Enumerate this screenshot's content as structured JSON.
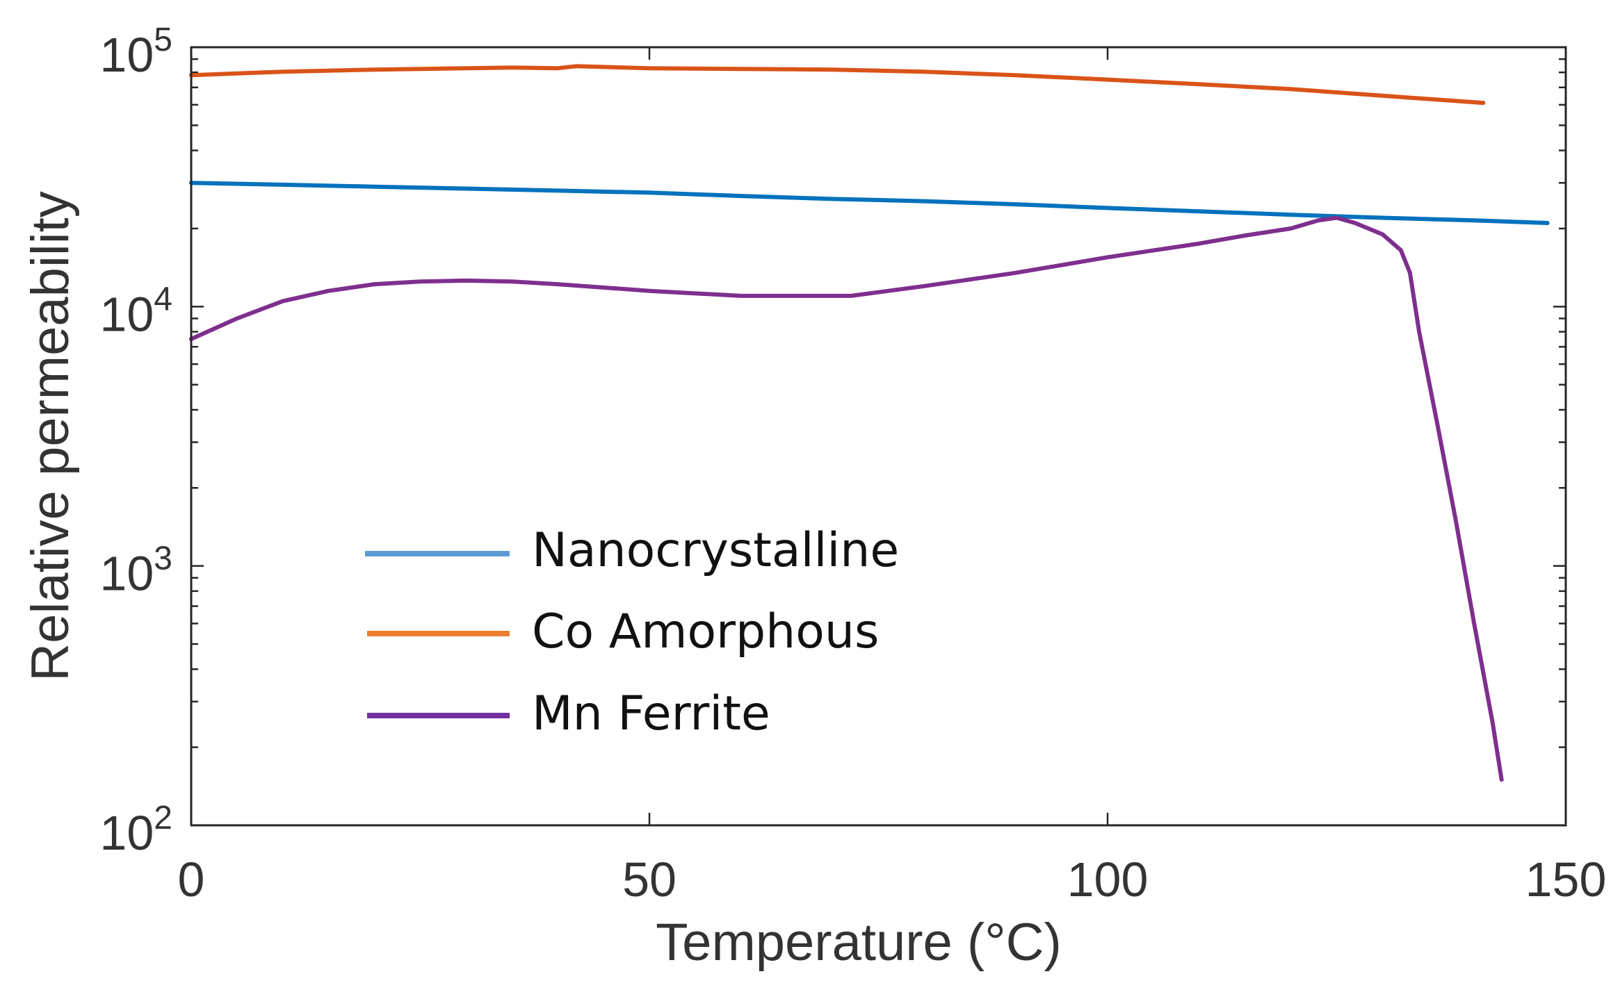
{
  "chart_data": {
    "type": "line",
    "title": "",
    "xlabel": "Temperature (°C)",
    "ylabel": "Relative permeability",
    "xlim": [
      0,
      150
    ],
    "ylim": [
      100,
      100000
    ],
    "yscale": "log",
    "grid": false,
    "legend_position": "lower-left",
    "x_ticks": [
      {
        "value": 0,
        "label": "0"
      },
      {
        "value": 50,
        "label": "50"
      },
      {
        "value": 100,
        "label": "100"
      },
      {
        "value": 150,
        "label": "150"
      }
    ],
    "y_ticks": [
      {
        "value": 100,
        "base": "10",
        "exp": "2"
      },
      {
        "value": 1000,
        "base": "10",
        "exp": "3"
      },
      {
        "value": 10000,
        "base": "10",
        "exp": "4"
      },
      {
        "value": 100000,
        "base": "10",
        "exp": "5"
      }
    ],
    "series": [
      {
        "name": "Nanocrystalline",
        "color": "#0072bd",
        "legend_color": "#5b9bd5",
        "x": [
          0,
          10,
          20,
          30,
          40,
          50,
          60,
          70,
          80,
          90,
          100,
          110,
          120,
          130,
          140,
          148
        ],
        "y": [
          30000,
          29500,
          29000,
          28500,
          28000,
          27500,
          26700,
          26000,
          25500,
          24800,
          24000,
          23300,
          22600,
          22000,
          21500,
          21000
        ]
      },
      {
        "name": "Co Amorphous",
        "color": "#d95319",
        "legend_color": "#ed7d31",
        "x": [
          0,
          10,
          20,
          30,
          35,
          40,
          42,
          50,
          60,
          70,
          80,
          90,
          100,
          110,
          120,
          130,
          141
        ],
        "y": [
          78000,
          80500,
          82000,
          83000,
          83500,
          83000,
          84500,
          83000,
          82500,
          82000,
          80500,
          78000,
          75000,
          72000,
          69000,
          65000,
          61000
        ]
      },
      {
        "name": "Mn Ferrite",
        "color": "#7e2f8e",
        "legend_color": "#7030a0",
        "x": [
          0,
          5,
          10,
          15,
          20,
          25,
          30,
          35,
          40,
          50,
          60,
          65,
          70,
          72,
          80,
          90,
          100,
          110,
          115,
          120,
          123,
          125,
          127,
          130,
          132,
          133,
          134,
          136,
          138,
          140,
          142,
          143
        ],
        "y": [
          7500,
          9000,
          10500,
          11500,
          12200,
          12500,
          12600,
          12500,
          12200,
          11500,
          11000,
          11000,
          11000,
          11000,
          12000,
          13500,
          15500,
          17500,
          18800,
          20000,
          21500,
          22000,
          21000,
          19000,
          16500,
          13500,
          8000,
          3500,
          1500,
          600,
          250,
          150
        ]
      }
    ]
  }
}
